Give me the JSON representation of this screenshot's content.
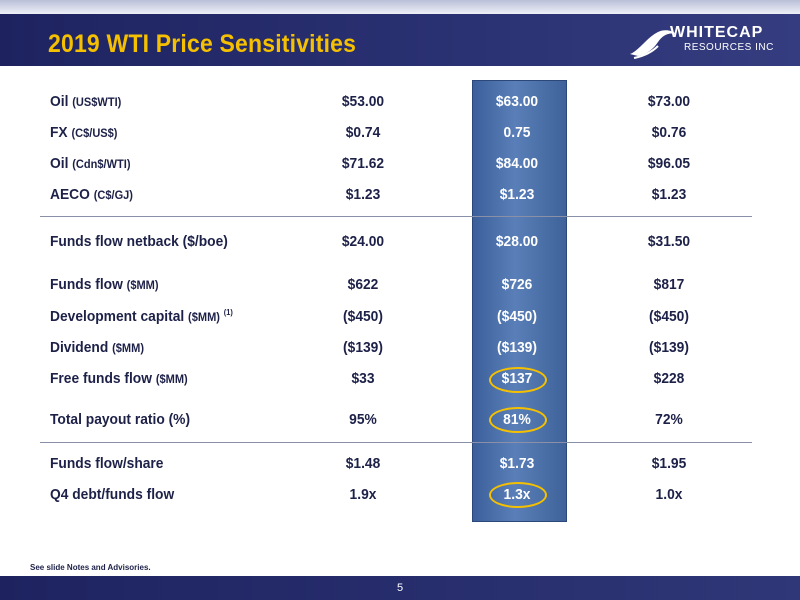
{
  "header": {
    "title": "2019 WTI Price Sensitivities"
  },
  "logo": {
    "word": "WHITECAP",
    "sub": "RESOURCES INC"
  },
  "rows": [
    {
      "label": "Oil",
      "unit": "(US$WTI)",
      "values": [
        "$53.00",
        "$63.00",
        "$73.00"
      ]
    },
    {
      "label": "FX",
      "unit": "(C$/US$)",
      "values": [
        "$0.74",
        "0.75",
        "$0.76"
      ]
    },
    {
      "label": "Oil",
      "unit": "(Cdn$/WTI)",
      "values": [
        "$71.62",
        "$84.00",
        "$96.05"
      ]
    },
    {
      "label": "AECO",
      "unit": "(C$/GJ)",
      "values": [
        "$1.23",
        "$1.23",
        "$1.23"
      ]
    },
    {
      "label": "Funds flow netback ($/boe)",
      "unit": "",
      "values": [
        "$24.00",
        "$28.00",
        "$31.50"
      ]
    },
    {
      "label": "Funds flow",
      "unit": "($MM)",
      "values": [
        "$622",
        "$726",
        "$817"
      ]
    },
    {
      "label": "Development capital",
      "unit": "($MM)",
      "note": "(1)",
      "values": [
        "($450)",
        "($450)",
        "($450)"
      ]
    },
    {
      "label": "Dividend",
      "unit": "($MM)",
      "values": [
        "($139)",
        "($139)",
        "($139)"
      ]
    },
    {
      "label": "Free funds flow",
      "unit": "($MM)",
      "values": [
        "$33",
        "$137",
        "$228"
      ]
    },
    {
      "label": "Total payout ratio (%)",
      "unit": "",
      "values": [
        "95%",
        "81%",
        "72%"
      ]
    },
    {
      "label": "Funds flow/share",
      "unit": "",
      "values": [
        "$1.48",
        "$1.73",
        "$1.95"
      ]
    },
    {
      "label": "Q4 debt/funds flow",
      "unit": "",
      "values": [
        "1.9x",
        "1.3x",
        "1.0x"
      ]
    }
  ],
  "footer": {
    "note": "See slide Notes and Advisories.",
    "page": "5"
  },
  "colors": {
    "navy": "#1e2360",
    "gold": "#f5c000",
    "highlight": "#4a6fa8"
  }
}
